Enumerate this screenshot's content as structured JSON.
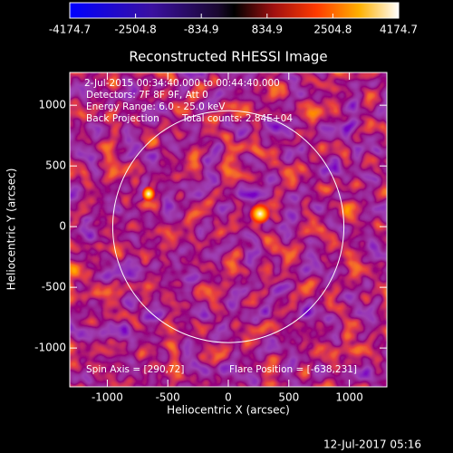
{
  "chart_data": {
    "type": "heatmap",
    "title": "Reconstructed RHESSI Image",
    "xlabel": "Heliocentric X (arcsec)",
    "ylabel": "Heliocentric Y (arcsec)",
    "xlim": [
      -1310,
      1310
    ],
    "ylim": [
      -1320,
      1270
    ],
    "xticks": [
      -1000,
      -500,
      0,
      500,
      1000
    ],
    "yticks": [
      -1000,
      -500,
      0,
      500,
      1000
    ],
    "solar_radius": 955,
    "colorbar": {
      "lim": [
        -4174.7,
        4174.7
      ],
      "ticks": [
        -4174.7,
        -2504.8,
        -834.9,
        834.9,
        2504.8,
        4174.7
      ]
    },
    "annotations": {
      "time": " 2-Jul-2015 00:34:40.000 to 00:44:40.000",
      "detectors": "Detectors: 7F 8F 9F, Att 0",
      "energy": "Energy Range: 6.0 - 25.0 keV",
      "method": "Back Projection",
      "counts": "Total counts: 2.84E+04",
      "spin_axis": "Spin Axis = [290,72]",
      "flare_position": "Flare Position = [-638,231]"
    }
  },
  "footer": "12-Jul-2017 05:16"
}
